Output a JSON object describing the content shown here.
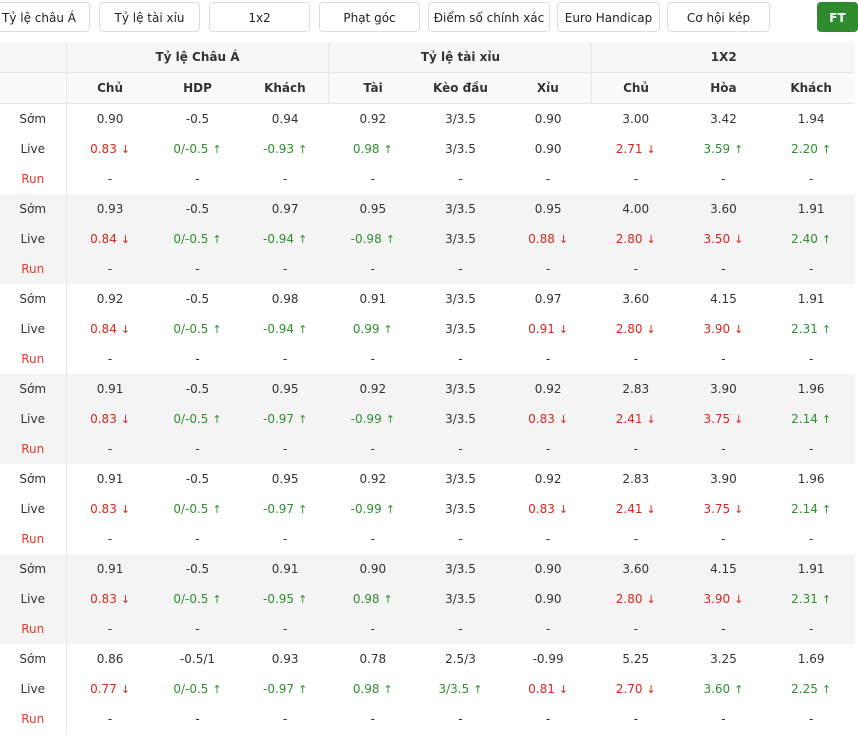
{
  "tabs": [
    "Tỷ lệ châu Á",
    "Tỷ lệ tài xỉu",
    "1x2",
    "Phạt góc",
    "Điểm số chính xác",
    "Euro Handicap",
    "Cơ hội kép",
    "FT"
  ],
  "table": {
    "groups": [
      "Tỷ lệ Châu Á",
      "Tỷ lệ tài xỉu",
      "1X2"
    ],
    "columns": [
      "Chủ",
      "HDP",
      "Khách",
      "Tài",
      "Kèo đầu",
      "Xỉu",
      "Chủ",
      "Hòa",
      "Khách"
    ],
    "blocks": [
      [
        {
          "label": "Sớm",
          "cells": [
            "0.90",
            "-0.5",
            "0.94",
            "0.92",
            "3/3.5",
            "0.90",
            "3.00",
            "3.42",
            "1.94"
          ]
        },
        {
          "label": "Live",
          "cells": [
            {
              "v": "0.83",
              "m": "down"
            },
            {
              "v": "0/-0.5",
              "m": "up"
            },
            {
              "v": "-0.93",
              "m": "up"
            },
            {
              "v": "0.98",
              "m": "up"
            },
            "3/3.5",
            "0.90",
            {
              "v": "2.71",
              "m": "down"
            },
            {
              "v": "3.59",
              "m": "up"
            },
            {
              "v": "2.20",
              "m": "up"
            }
          ]
        },
        {
          "label": "Run",
          "cells": [
            "-",
            "-",
            "-",
            "-",
            "-",
            "-",
            "-",
            "-",
            "-"
          ]
        }
      ],
      [
        {
          "label": "Sớm",
          "cells": [
            "0.93",
            "-0.5",
            "0.97",
            "0.95",
            "3/3.5",
            "0.95",
            "4.00",
            "3.60",
            "1.91"
          ]
        },
        {
          "label": "Live",
          "cells": [
            {
              "v": "0.84",
              "m": "down"
            },
            {
              "v": "0/-0.5",
              "m": "up"
            },
            {
              "v": "-0.94",
              "m": "up"
            },
            {
              "v": "-0.98",
              "m": "up"
            },
            "3/3.5",
            {
              "v": "0.88",
              "m": "down"
            },
            {
              "v": "2.80",
              "m": "down"
            },
            {
              "v": "3.50",
              "m": "down"
            },
            {
              "v": "2.40",
              "m": "up"
            }
          ]
        },
        {
          "label": "Run",
          "cells": [
            "-",
            "-",
            "-",
            "-",
            "-",
            "-",
            "-",
            "-",
            "-"
          ]
        }
      ],
      [
        {
          "label": "Sớm",
          "cells": [
            "0.92",
            "-0.5",
            "0.98",
            "0.91",
            "3/3.5",
            "0.97",
            "3.60",
            "4.15",
            "1.91"
          ]
        },
        {
          "label": "Live",
          "cells": [
            {
              "v": "0.84",
              "m": "down"
            },
            {
              "v": "0/-0.5",
              "m": "up"
            },
            {
              "v": "-0.94",
              "m": "up"
            },
            {
              "v": "0.99",
              "m": "up"
            },
            "3/3.5",
            {
              "v": "0.91",
              "m": "down"
            },
            {
              "v": "2.80",
              "m": "down"
            },
            {
              "v": "3.90",
              "m": "down"
            },
            {
              "v": "2.31",
              "m": "up"
            }
          ]
        },
        {
          "label": "Run",
          "cells": [
            "-",
            "-",
            "-",
            "-",
            "-",
            "-",
            "-",
            "-",
            "-"
          ]
        }
      ],
      [
        {
          "label": "Sớm",
          "cells": [
            "0.91",
            "-0.5",
            "0.95",
            "0.92",
            "3/3.5",
            "0.92",
            "2.83",
            "3.90",
            "1.96"
          ]
        },
        {
          "label": "Live",
          "cells": [
            {
              "v": "0.83",
              "m": "down"
            },
            {
              "v": "0/-0.5",
              "m": "up"
            },
            {
              "v": "-0.97",
              "m": "up"
            },
            {
              "v": "-0.99",
              "m": "up"
            },
            "3/3.5",
            {
              "v": "0.83",
              "m": "down"
            },
            {
              "v": "2.41",
              "m": "down"
            },
            {
              "v": "3.75",
              "m": "down"
            },
            {
              "v": "2.14",
              "m": "up"
            }
          ]
        },
        {
          "label": "Run",
          "cells": [
            "-",
            "-",
            "-",
            "-",
            "-",
            "-",
            "-",
            "-",
            "-"
          ]
        }
      ],
      [
        {
          "label": "Sớm",
          "cells": [
            "0.91",
            "-0.5",
            "0.95",
            "0.92",
            "3/3.5",
            "0.92",
            "2.83",
            "3.90",
            "1.96"
          ]
        },
        {
          "label": "Live",
          "cells": [
            {
              "v": "0.83",
              "m": "down"
            },
            {
              "v": "0/-0.5",
              "m": "up"
            },
            {
              "v": "-0.97",
              "m": "up"
            },
            {
              "v": "-0.99",
              "m": "up"
            },
            "3/3.5",
            {
              "v": "0.83",
              "m": "down"
            },
            {
              "v": "2.41",
              "m": "down"
            },
            {
              "v": "3.75",
              "m": "down"
            },
            {
              "v": "2.14",
              "m": "up"
            }
          ]
        },
        {
          "label": "Run",
          "cells": [
            "-",
            "-",
            "-",
            "-",
            "-",
            "-",
            "-",
            "-",
            "-"
          ]
        }
      ],
      [
        {
          "label": "Sớm",
          "cells": [
            "0.91",
            "-0.5",
            "0.91",
            "0.90",
            "3/3.5",
            "0.90",
            "3.60",
            "4.15",
            "1.91"
          ]
        },
        {
          "label": "Live",
          "cells": [
            {
              "v": "0.83",
              "m": "down"
            },
            {
              "v": "0/-0.5",
              "m": "up"
            },
            {
              "v": "-0.95",
              "m": "up"
            },
            {
              "v": "0.98",
              "m": "up"
            },
            "3/3.5",
            "0.90",
            {
              "v": "2.80",
              "m": "down"
            },
            {
              "v": "3.90",
              "m": "down"
            },
            {
              "v": "2.31",
              "m": "up"
            }
          ]
        },
        {
          "label": "Run",
          "cells": [
            "-",
            "-",
            "-",
            "-",
            "-",
            "-",
            "-",
            "-",
            "-"
          ]
        }
      ],
      [
        {
          "label": "Sớm",
          "cells": [
            "0.86",
            "-0.5/1",
            "0.93",
            "0.78",
            "2.5/3",
            "-0.99",
            "5.25",
            "3.25",
            "1.69"
          ]
        },
        {
          "label": "Live",
          "cells": [
            {
              "v": "0.77",
              "m": "down"
            },
            {
              "v": "0/-0.5",
              "m": "up"
            },
            {
              "v": "-0.97",
              "m": "up"
            },
            {
              "v": "0.98",
              "m": "up"
            },
            {
              "v": "3/3.5",
              "m": "up"
            },
            {
              "v": "0.81",
              "m": "down"
            },
            {
              "v": "2.70",
              "m": "down"
            },
            {
              "v": "3.60",
              "m": "up"
            },
            {
              "v": "2.25",
              "m": "up"
            }
          ]
        },
        {
          "label": "Run",
          "cells": [
            "-",
            "-",
            "-",
            "-",
            "-",
            "-",
            "-",
            "-",
            "-"
          ]
        }
      ]
    ]
  }
}
